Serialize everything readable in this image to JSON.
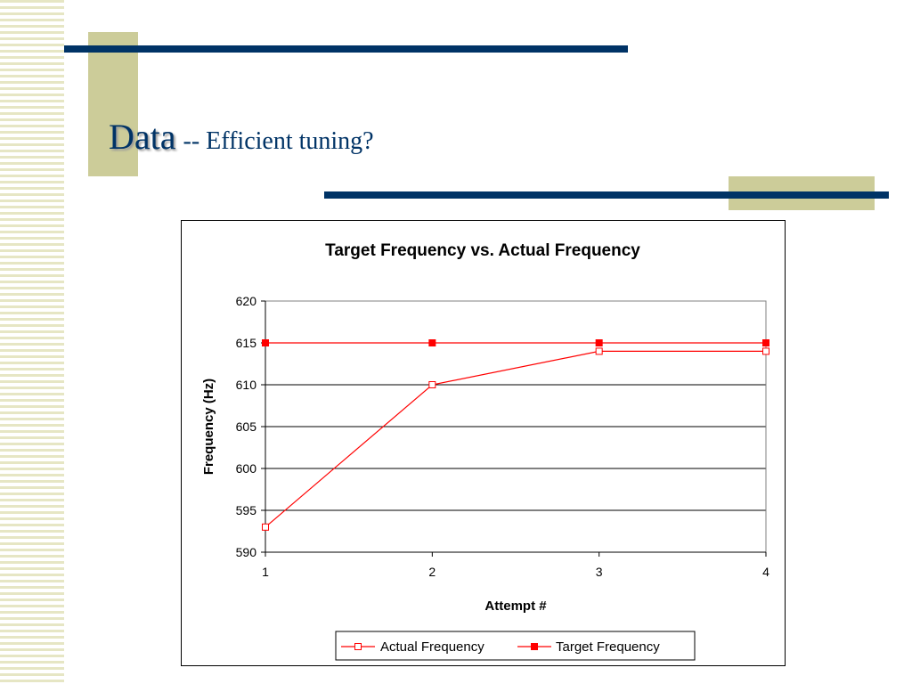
{
  "slide": {
    "title_main": "Data",
    "title_sub": "-- Efficient tuning?"
  },
  "colors": {
    "accent_navy": "#003366",
    "accent_tan": "#cccc99",
    "series_red": "#ff0000"
  },
  "chart_data": {
    "type": "line",
    "title": "Target Frequency vs. Actual Frequency",
    "xlabel": "Attempt #",
    "ylabel": "Frequency (Hz)",
    "x": [
      1,
      2,
      3,
      4
    ],
    "ylim": [
      590,
      620
    ],
    "yticks": [
      590,
      595,
      600,
      605,
      610,
      615,
      620
    ],
    "grid": true,
    "legend_position": "bottom",
    "series": [
      {
        "name": "Actual Frequency",
        "values": [
          593,
          610,
          614,
          614
        ],
        "marker": "hollow-square",
        "color": "#ff0000"
      },
      {
        "name": "Target Frequency",
        "values": [
          615,
          615,
          615,
          615
        ],
        "marker": "filled-square",
        "color": "#ff0000"
      }
    ]
  }
}
